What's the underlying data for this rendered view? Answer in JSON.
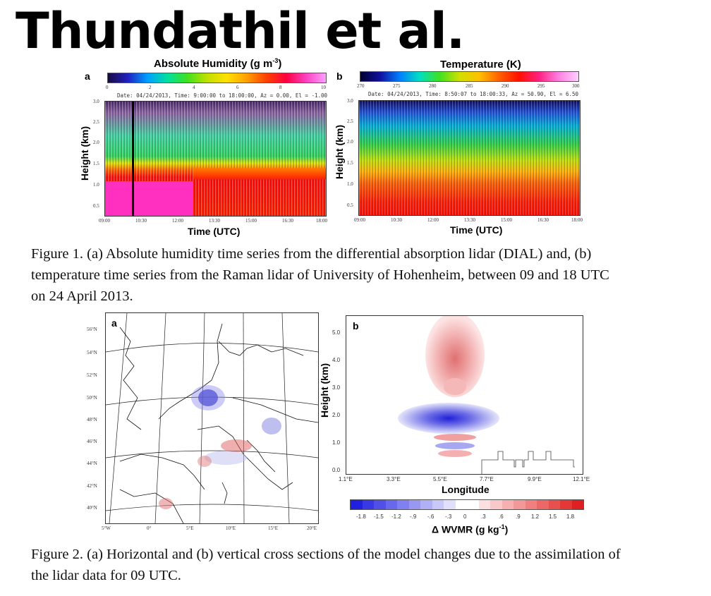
{
  "title": "Thundathil et al.",
  "figure1": {
    "panel_a": {
      "letter": "a",
      "colorbar_title_main": "Absolute Humidity (g m",
      "colorbar_title_sup": "-3",
      "colorbar_title_end": ")",
      "colorbar_ticks": [
        "0",
        "2",
        "4",
        "6",
        "8",
        "10"
      ],
      "meta": "Date: 04/24/2013, Time:  9:00:00 to 18:00:00, Az =   0.00, El =  -1.00",
      "ylabel": "Height (km)",
      "xlabel": "Time (UTC)",
      "y_ticks": [
        "3.0",
        "2.5",
        "2.0",
        "1.5",
        "1.0",
        "0.5"
      ],
      "x_ticks": [
        "09:00",
        "10:30",
        "12:00",
        "13:30",
        "15:00",
        "16:30",
        "18:00"
      ]
    },
    "panel_b": {
      "letter": "b",
      "colorbar_title": "Temperature (K)",
      "colorbar_ticks": [
        "270",
        "275",
        "280",
        "285",
        "290",
        "295",
        "300"
      ],
      "meta": "Date: 04/24/2013, Time:  8:50:07 to 18:00:33, Az =  50.90, El =   6.50",
      "ylabel": "Height (km)",
      "xlabel": "Time (UTC)",
      "y_ticks": [
        "3.0",
        "2.5",
        "2.0",
        "1.5",
        "1.0",
        "0.5"
      ],
      "x_ticks": [
        "09:00",
        "10:30",
        "12:00",
        "13:30",
        "15:00",
        "16:30",
        "18:00"
      ]
    },
    "caption_lines": [
      "Figure 1. (a) Absolute humidity time series from the differential absorption lidar (DIAL) and, (b)",
      "temperature time series from the Raman lidar of University of Hohenheim, between 09 and 18 UTC",
      "on 24 April 2013."
    ]
  },
  "figure2": {
    "panel_a": {
      "letter": "a",
      "lat_ticks": [
        "56°N",
        "54°N",
        "52°N",
        "50°N",
        "48°N",
        "46°N",
        "44°N",
        "42°N",
        "40°N"
      ],
      "lon_ticks": [
        "5°W",
        "0°",
        "5°E",
        "10°E",
        "15°E",
        "20°E"
      ]
    },
    "panel_b": {
      "letter": "b",
      "ylabel": "Height (km)",
      "xlabel": "Longitude",
      "y_ticks": [
        "5.0",
        "4.0",
        "3.0",
        "2.0",
        "1.0",
        "0.0"
      ],
      "x_ticks": [
        "1.1°E",
        "3.3°E",
        "5.5°E",
        "7.7°E",
        "9.9°E",
        "12.1°E"
      ]
    },
    "colorbar": {
      "ticks": [
        "-1.8",
        "-1.5",
        "-1.2",
        "-.9",
        "-.6",
        "-.3",
        "0",
        ".3",
        ".6",
        ".9",
        "1.2",
        "1.5",
        "1.8"
      ],
      "label_main": "Δ WVMR (g kg",
      "label_sup": "-1",
      "label_end": ")"
    },
    "caption_lines": [
      "Figure 2. (a) Horizontal and (b) vertical cross sections of the model changes due to the assimilation of",
      "the lidar data for 09 UTC."
    ]
  },
  "colors": {
    "humidity_low": "#1a1aa0",
    "humidity_high": "#ff60d8",
    "temp_cold": "#000040",
    "temp_warm": "#ff4000",
    "wvmr_negative": "#2020e0",
    "wvmr_positive": "#e02020"
  }
}
